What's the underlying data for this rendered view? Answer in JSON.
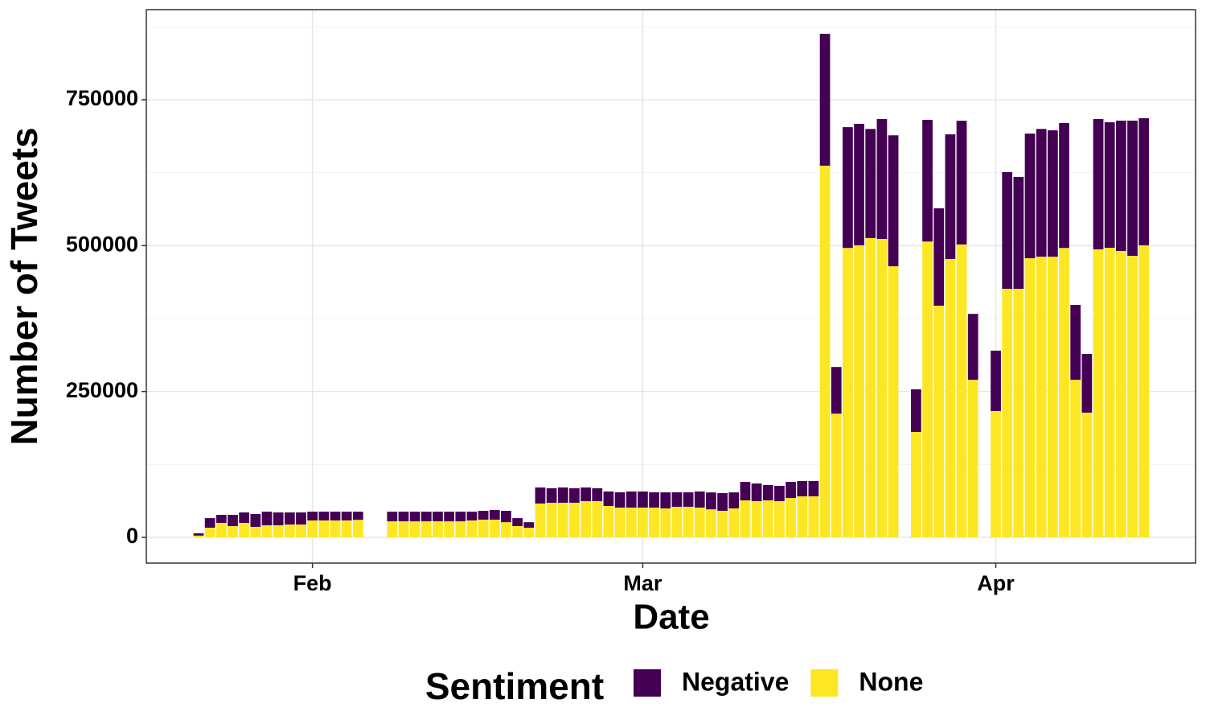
{
  "chart_data": {
    "type": "bar",
    "stacked": true,
    "x_label": "Date",
    "y_label": "Number of Tweets",
    "legend_title": "Sentiment",
    "legend_position": "bottom",
    "categories": [
      null,
      null,
      null,
      null,
      null,
      null,
      null,
      null,
      null,
      null,
      "Feb",
      null,
      null,
      null,
      null,
      null,
      null,
      null,
      null,
      null,
      null,
      null,
      null,
      null,
      null,
      null,
      null,
      null,
      null,
      null,
      null,
      null,
      null,
      null,
      null,
      null,
      null,
      null,
      null,
      "Mar",
      null,
      null,
      null,
      null,
      null,
      null,
      null,
      null,
      null,
      null,
      null,
      null,
      null,
      null,
      null,
      null,
      null,
      null,
      null,
      null,
      null,
      null,
      null,
      null,
      null,
      null,
      null,
      null,
      null,
      null,
      "Apr",
      null,
      null,
      null,
      null,
      null,
      null,
      null,
      null,
      null,
      null,
      null,
      null,
      null
    ],
    "series": [
      {
        "name": "Negative",
        "color": "#440154",
        "values": [
          4000,
          16500,
          13800,
          19300,
          17900,
          22000,
          23300,
          22000,
          20700,
          20700,
          15000,
          15000,
          15000,
          15000,
          14000,
          null,
          null,
          16500,
          16500,
          16500,
          16500,
          16500,
          16500,
          16500,
          15000,
          15100,
          16500,
          19500,
          13700,
          9500,
          27500,
          24800,
          26200,
          24800,
          23500,
          22100,
          24800,
          26200,
          27600,
          27600,
          26200,
          27500,
          24800,
          24800,
          27600,
          29000,
          30300,
          27500,
          31600,
          30300,
          26200,
          26200,
          27600,
          26200,
          26200,
          226000,
          80000,
          207000,
          208200,
          187000,
          205500,
          224400,
          null,
          73100,
          208600,
          167000,
          213700,
          212000,
          113000,
          null,
          103500,
          200000,
          191700,
          213600,
          219000,
          216600,
          214000,
          128400,
          100600,
          223400,
          215100,
          223400,
          231700,
          217800
        ]
      },
      {
        "name": "None",
        "color": "#fde725",
        "values": [
          3000,
          16500,
          24800,
          19300,
          24800,
          18000,
          20700,
          20700,
          22000,
          22000,
          29000,
          29000,
          29000,
          29000,
          30000,
          null,
          null,
          27500,
          27500,
          27500,
          27500,
          27500,
          27500,
          27500,
          29000,
          30300,
          30300,
          26000,
          19300,
          16500,
          58000,
          59300,
          59300,
          59300,
          62000,
          62000,
          53800,
          51000,
          51000,
          51000,
          51000,
          49600,
          52400,
          52400,
          51000,
          48000,
          45500,
          49600,
          63400,
          62000,
          63400,
          62000,
          67500,
          70300,
          70300,
          637000,
          212000,
          496000,
          500500,
          513000,
          511500,
          464600,
          null,
          180600,
          507000,
          397000,
          477000,
          502000,
          270000,
          null,
          216500,
          426000,
          426000,
          478400,
          481000,
          481000,
          496000,
          270000,
          213700,
          493600,
          496300,
          490800,
          482500,
          500500
        ]
      }
    ],
    "ylim": [
      -44100,
      904400
    ],
    "yticks": [
      0,
      250000,
      500000,
      750000
    ],
    "grid": true
  }
}
